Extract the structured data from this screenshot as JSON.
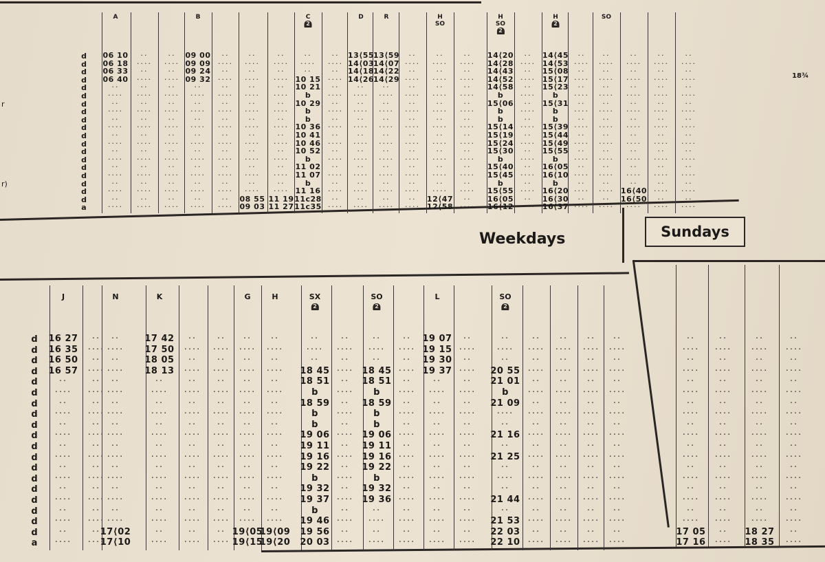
{
  "section_headings": {
    "weekdays": "Weekdays",
    "sundays": "Sundays"
  },
  "margin_label": "18¾",
  "top_table": {
    "row_types": [
      "d",
      "d",
      "d",
      "d",
      "d",
      "d",
      "d",
      "d",
      "d",
      "d",
      "d",
      "d",
      "d",
      "d",
      "d",
      "d",
      "d",
      "d",
      "d",
      "a"
    ],
    "stub_fragments": [
      {
        "row": 6,
        "text": "r"
      },
      {
        "row": 16,
        "text": "r)"
      }
    ],
    "columns": [
      {
        "header": "A",
        "cells": [
          "06 10",
          "06 18",
          "06 33",
          "06 40",
          "",
          "",
          "",
          "",
          "",
          "",
          "",
          "",
          "",
          "",
          "",
          "",
          "",
          "",
          "",
          ""
        ]
      },
      {
        "header": "",
        "cells": [
          "",
          "",
          "",
          "",
          "",
          "",
          "",
          "",
          "",
          "",
          "",
          "",
          "",
          "",
          "",
          "",
          "",
          "",
          "",
          ""
        ]
      },
      {
        "header": "",
        "cells": [
          "",
          "",
          "",
          "",
          "",
          "",
          "",
          "",
          "",
          "",
          "",
          "",
          "",
          "",
          "",
          "",
          "",
          "",
          "",
          ""
        ]
      },
      {
        "header": "B",
        "cells": [
          "09 00",
          "09 09",
          "09 24",
          "09 32",
          "",
          "",
          "",
          "",
          "",
          "",
          "",
          "",
          "",
          "",
          "",
          "",
          "",
          "",
          "",
          ""
        ]
      },
      {
        "header": "",
        "cells": [
          "",
          "",
          "",
          "",
          "",
          "",
          "",
          "",
          "",
          "",
          "",
          "",
          "",
          "",
          "",
          "",
          "",
          "",
          "",
          ""
        ]
      },
      {
        "header": "",
        "cells": [
          "",
          "",
          "",
          "",
          "",
          "",
          "",
          "",
          "",
          "",
          "",
          "",
          "",
          "",
          "",
          "",
          "",
          "",
          "08 55",
          "09 03"
        ]
      },
      {
        "header": "",
        "cells": [
          "",
          "",
          "",
          "",
          "",
          "",
          "",
          "",
          "",
          "",
          "",
          "",
          "",
          "",
          "",
          "",
          "",
          "",
          "11 19",
          "11 27"
        ]
      },
      {
        "header": "C",
        "badge": "2",
        "cells": [
          "",
          "",
          "",
          "10 15",
          "10 21",
          "b",
          "10 29",
          "b",
          "b",
          "10 36",
          "10 41",
          "10 46",
          "10 52",
          "b",
          "11 02",
          "11 07",
          "b",
          "11 16",
          "11c28",
          "11c35"
        ]
      },
      {
        "header": "",
        "cells": [
          "",
          "",
          "",
          "",
          "",
          "",
          "",
          "",
          "",
          "",
          "",
          "",
          "",
          "",
          "",
          "",
          "",
          "",
          "",
          ""
        ]
      },
      {
        "header": "D",
        "cells": [
          "13⟨55",
          "14⟨03",
          "14⟨18",
          "14⟨26",
          "",
          "",
          "",
          "",
          "",
          "",
          "",
          "",
          "",
          "",
          "",
          "",
          "",
          "",
          "",
          ""
        ]
      },
      {
        "header": "R",
        "cells": [
          "13⟨59",
          "14⟨07",
          "14⟨22",
          "14⟨29",
          "",
          "",
          "",
          "",
          "",
          "",
          "",
          "",
          "",
          "",
          "",
          "",
          "",
          "",
          "",
          ""
        ]
      },
      {
        "header": "",
        "cells": [
          "",
          "",
          "",
          "",
          "",
          "",
          "",
          "",
          "",
          "",
          "",
          "",
          "",
          "",
          "",
          "",
          "",
          "",
          "",
          ""
        ]
      },
      {
        "header": "H SO",
        "cells": [
          "",
          "",
          "",
          "",
          "",
          "",
          "",
          "",
          "",
          "",
          "",
          "",
          "",
          "",
          "",
          "",
          "",
          "",
          "12⟨47",
          "12⟨58"
        ]
      },
      {
        "header": "",
        "cells": [
          "",
          "",
          "",
          "",
          "",
          "",
          "",
          "",
          "",
          "",
          "",
          "",
          "",
          "",
          "",
          "",
          "",
          "",
          "",
          ""
        ]
      },
      {
        "header": "H SO",
        "badge": "2",
        "cells": [
          "14⟨20",
          "14⟨28",
          "14⟨43",
          "14⟨52",
          "14⟨58",
          "b",
          "15⟨06",
          "b",
          "b",
          "15⟨14",
          "15⟨19",
          "15⟨24",
          "15⟨30",
          "b",
          "15⟨40",
          "15⟨45",
          "b",
          "15⟨55",
          "16⟨05",
          "16⟨12"
        ]
      },
      {
        "header": "",
        "cells": [
          "",
          "",
          "",
          "",
          "",
          "",
          "",
          "",
          "",
          "",
          "",
          "",
          "",
          "",
          "",
          "",
          "",
          "",
          "",
          ""
        ]
      },
      {
        "header": "H",
        "badge": "2",
        "cells": [
          "14⟨45",
          "14⟨53",
          "15⟨08",
          "15⟨17",
          "15⟨23",
          "b",
          "15⟨31",
          "b",
          "b",
          "15⟨39",
          "15⟨44",
          "15⟨49",
          "15⟨55",
          "b",
          "16⟨05",
          "16⟨10",
          "b",
          "16⟨20",
          "16⟨30",
          "16⟨37"
        ]
      },
      {
        "header": "",
        "cells": [
          "",
          "",
          "",
          "",
          "",
          "",
          "",
          "",
          "",
          "",
          "",
          "",
          "",
          "",
          "",
          "",
          "",
          "",
          "",
          ""
        ]
      },
      {
        "header": "SO",
        "cells": [
          "",
          "",
          "",
          "",
          "",
          "",
          "",
          "",
          "",
          "",
          "",
          "",
          "",
          "",
          "",
          "",
          "",
          "",
          "",
          ""
        ]
      },
      {
        "header": "",
        "cells": [
          "",
          "",
          "",
          "",
          "",
          "",
          "",
          "",
          "",
          "",
          "",
          "",
          "",
          "",
          "",
          "",
          "",
          "16⟨40",
          "16⟨50",
          ""
        ]
      },
      {
        "header": "",
        "cells": [
          "",
          "",
          "",
          "",
          "",
          "",
          "",
          "",
          "",
          "",
          "",
          "",
          "",
          "",
          "",
          "",
          "",
          "",
          "",
          ""
        ]
      },
      {
        "header": "",
        "cells": [
          "",
          "",
          "",
          "",
          "",
          "",
          "",
          "",
          "",
          "",
          "",
          "",
          "",
          "",
          "",
          "",
          "",
          "",
          "",
          ""
        ]
      }
    ]
  },
  "bottom_table": {
    "row_types": [
      "d",
      "d",
      "d",
      "d",
      "d",
      "d",
      "d",
      "d",
      "d",
      "d",
      "d",
      "d",
      "d",
      "d",
      "d",
      "d",
      "d",
      "d",
      "d",
      "a"
    ],
    "weekday_columns": [
      {
        "header": "J",
        "cells": [
          "16 27",
          "16 35",
          "16 50",
          "16 57",
          "",
          "",
          "",
          "",
          "",
          "",
          "",
          "",
          "",
          "",
          "",
          "",
          "",
          "",
          "",
          ""
        ]
      },
      {
        "header": "",
        "cells": [
          "",
          "",
          "",
          "",
          "",
          "",
          "",
          "",
          "",
          "",
          "",
          "",
          "",
          "",
          "",
          "",
          "",
          "",
          "",
          ""
        ]
      },
      {
        "header": "N",
        "cells": [
          "",
          "",
          "",
          "",
          "",
          "",
          "",
          "",
          "",
          "",
          "",
          "",
          "",
          "",
          "",
          "",
          "",
          "",
          "17⟨02",
          "17⟨10"
        ]
      },
      {
        "header": "K",
        "cells": [
          "17 42",
          "17 50",
          "18 05",
          "18 13",
          "",
          "",
          "",
          "",
          "",
          "",
          "",
          "",
          "",
          "",
          "",
          "",
          "",
          "",
          "",
          ""
        ]
      },
      {
        "header": "",
        "cells": [
          "",
          "",
          "",
          "",
          "",
          "",
          "",
          "",
          "",
          "",
          "",
          "",
          "",
          "",
          "",
          "",
          "",
          "",
          "",
          ""
        ]
      },
      {
        "header": "",
        "cells": [
          "",
          "",
          "",
          "",
          "",
          "",
          "",
          "",
          "",
          "",
          "",
          "",
          "",
          "",
          "",
          "",
          "",
          "",
          "",
          ""
        ]
      },
      {
        "header": "G",
        "cells": [
          "",
          "",
          "",
          "",
          "",
          "",
          "",
          "",
          "",
          "",
          "",
          "",
          "",
          "",
          "",
          "",
          "",
          "",
          "19⟨05",
          "19⟨15"
        ]
      },
      {
        "header": "H",
        "cells": [
          "",
          "",
          "",
          "",
          "",
          "",
          "",
          "",
          "",
          "",
          "",
          "",
          "",
          "",
          "",
          "",
          "",
          "",
          "19⟨09",
          "19⟨20"
        ]
      },
      {
        "header": "SX",
        "badge": "2",
        "cells": [
          "",
          "",
          "",
          "18 45",
          "18 51",
          "b",
          "18 59",
          "b",
          "b",
          "19 06",
          "19 11",
          "19 16",
          "19 22",
          "b",
          "19 32",
          "19 37",
          "b",
          "19 46",
          "19 56",
          "20 03"
        ]
      },
      {
        "header": "",
        "cells": [
          "",
          "",
          "",
          "",
          "",
          "",
          "",
          "",
          "",
          "",
          "",
          "",
          "",
          "",
          "",
          "",
          "",
          "",
          "",
          ""
        ]
      },
      {
        "header": "SO",
        "badge": "2",
        "cells": [
          "",
          "",
          "",
          "18 45",
          "18 51",
          "b",
          "18 59",
          "b",
          "b",
          "19 06",
          "19 11",
          "19 16",
          "19 22",
          "b",
          "19 32",
          "19 36",
          "",
          "",
          "",
          ""
        ]
      },
      {
        "header": "",
        "cells": [
          "",
          "",
          "",
          "",
          "",
          "",
          "",
          "",
          "",
          "",
          "",
          "",
          "",
          "",
          "",
          "",
          "",
          "",
          "",
          ""
        ]
      },
      {
        "header": "L",
        "cells": [
          "19 07",
          "19 15",
          "19 30",
          "19 37",
          "",
          "",
          "",
          "",
          "",
          "",
          "",
          "",
          "",
          "",
          "",
          "",
          "",
          "",
          "",
          ""
        ]
      },
      {
        "header": "",
        "cells": [
          "",
          "",
          "",
          "",
          "",
          "",
          "",
          "",
          "",
          "",
          "",
          "",
          "",
          "",
          "",
          "",
          "",
          "",
          "",
          ""
        ]
      },
      {
        "header": "SO",
        "badge": "2",
        "cells": [
          "",
          "",
          "",
          "20 55",
          "21 01",
          "b",
          "21 09",
          "",
          "",
          "21 16",
          "",
          "21 25",
          "",
          "",
          "",
          "21 44",
          "",
          "21 53",
          "22 03",
          "22 10"
        ]
      },
      {
        "header": "",
        "cells": [
          "",
          "",
          "",
          "",
          "",
          "",
          "",
          "",
          "",
          "",
          "",
          "",
          "",
          "",
          "",
          "",
          "",
          "",
          "",
          ""
        ]
      },
      {
        "header": "",
        "cells": [
          "",
          "",
          "",
          "",
          "",
          "",
          "",
          "",
          "",
          "",
          "",
          "",
          "",
          "",
          "",
          "",
          "",
          "",
          "",
          ""
        ]
      },
      {
        "header": "",
        "cells": [
          "",
          "",
          "",
          "",
          "",
          "",
          "",
          "",
          "",
          "",
          "",
          "",
          "",
          "",
          "",
          "",
          "",
          "",
          "",
          ""
        ]
      },
      {
        "header": "",
        "cells": [
          "",
          "",
          "",
          "",
          "",
          "",
          "",
          "",
          "",
          "",
          "",
          "",
          "",
          "",
          "",
          "",
          "",
          "",
          "",
          ""
        ]
      }
    ],
    "sunday_columns": [
      {
        "header": "",
        "cells": [
          "",
          "",
          "",
          "",
          "",
          "",
          "",
          "",
          "",
          "",
          "",
          "",
          "",
          "",
          "",
          "",
          "",
          "",
          "17 05",
          "17 16"
        ]
      },
      {
        "header": "",
        "cells": [
          "",
          "",
          "",
          "",
          "",
          "",
          "",
          "",
          "",
          "",
          "",
          "",
          "",
          "",
          "",
          "",
          "",
          "",
          "",
          ""
        ]
      },
      {
        "header": "",
        "cells": [
          "",
          "",
          "",
          "",
          "",
          "",
          "",
          "",
          "",
          "",
          "",
          "",
          "",
          "",
          "",
          "",
          "",
          "",
          "18 27",
          "18 35"
        ]
      },
      {
        "header": "",
        "cells": [
          "",
          "",
          "",
          "",
          "",
          "",
          "",
          "",
          "",
          "",
          "",
          "",
          "",
          "",
          "",
          "",
          "",
          "",
          "",
          ""
        ]
      }
    ]
  }
}
